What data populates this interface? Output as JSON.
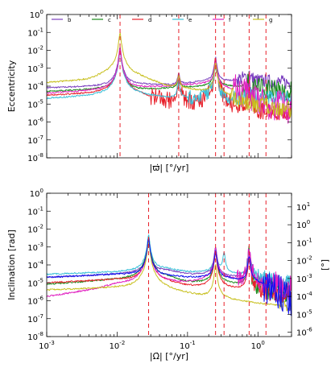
{
  "chart_data": [
    {
      "type": "line",
      "panel": "top",
      "ylabel": "Eccentricity",
      "xlabel": "|ϖ̇|  [°/yr]",
      "x_scale": "log",
      "y_scale": "log",
      "xlim": [
        0.001,
        3
      ],
      "ylim": [
        1e-08,
        1
      ],
      "x_ticks": [
        0.001,
        0.01,
        0.1,
        1
      ],
      "x_tick_labels_visible": false,
      "y_ticks": [
        {
          "value": 1,
          "label": "10",
          "exp": "0"
        },
        {
          "value": 0.1,
          "label": "10",
          "exp": "-1"
        },
        {
          "value": 0.01,
          "label": "10",
          "exp": "-2"
        },
        {
          "value": 0.001,
          "label": "10",
          "exp": "-3"
        },
        {
          "value": 0.0001,
          "label": "10",
          "exp": "-4"
        },
        {
          "value": 1e-05,
          "label": "10",
          "exp": "-5"
        },
        {
          "value": 1e-06,
          "label": "10",
          "exp": "-6"
        },
        {
          "value": 1e-07,
          "label": "10",
          "exp": "-7"
        },
        {
          "value": 1e-08,
          "label": "10",
          "exp": "-8"
        }
      ],
      "legend": {
        "placement": "top",
        "entries": [
          {
            "name": "b",
            "color": "#7b3fbf"
          },
          {
            "name": "c",
            "color": "#1a8a1a"
          },
          {
            "name": "d",
            "color": "#e8202a"
          },
          {
            "name": "e",
            "color": "#3cc0d8"
          },
          {
            "name": "f",
            "color": "#e020c0"
          },
          {
            "name": "g",
            "color": "#c8c020"
          }
        ]
      },
      "vlines": [
        0.011,
        0.075,
        0.25,
        0.33,
        0.75,
        1.3
      ],
      "series": [
        {
          "name": "b",
          "color": "#7b3fbf",
          "baseline": [
            [
              0.001,
              8e-05
            ],
            [
              0.008,
              0.0001
            ],
            [
              0.02,
              0.00012
            ],
            [
              0.06,
              0.00012
            ],
            [
              0.1,
              0.00015
            ],
            [
              0.2,
              0.0002
            ],
            [
              0.4,
              0.0002
            ],
            [
              0.7,
              0.0003
            ],
            [
              1,
              0.0002
            ],
            [
              3,
              0.00015
            ]
          ],
          "peaks": [
            [
              0.011,
              0.015
            ],
            [
              0.075,
              0.0004
            ],
            [
              0.25,
              0.004
            ],
            [
              0.75,
              0.0003
            ]
          ],
          "noise_from": 0.5,
          "noise_amp": 0.4
        },
        {
          "name": "c",
          "color": "#1a8a1a",
          "baseline": [
            [
              0.001,
              5e-05
            ],
            [
              0.008,
              7e-05
            ],
            [
              0.02,
              6e-05
            ],
            [
              0.06,
              8e-05
            ],
            [
              0.2,
              0.0001
            ],
            [
              0.4,
              0.0001
            ],
            [
              1,
              8e-05
            ],
            [
              3,
              5e-05
            ]
          ],
          "peaks": [
            [
              0.011,
              0.01
            ],
            [
              0.075,
              0.0003
            ],
            [
              0.25,
              0.003
            ],
            [
              0.75,
              0.0002
            ]
          ],
          "noise_from": 0.6,
          "noise_amp": 0.6
        },
        {
          "name": "d",
          "color": "#e8202a",
          "baseline": [
            [
              0.001,
              3e-05
            ],
            [
              0.008,
              4e-05
            ],
            [
              0.02,
              3e-05
            ],
            [
              0.05,
              1e-05
            ],
            [
              0.1,
              1e-05
            ],
            [
              0.2,
              1e-05
            ],
            [
              0.4,
              5e-06
            ],
            [
              1,
              3e-06
            ],
            [
              3,
              2e-06
            ]
          ],
          "peaks": [
            [
              0.011,
              0.012
            ],
            [
              0.075,
              0.0003
            ],
            [
              0.25,
              0.002
            ],
            [
              0.75,
              0.0001
            ]
          ],
          "noise_from": 0.03,
          "noise_amp": 0.5
        },
        {
          "name": "e",
          "color": "#3cc0d8",
          "baseline": [
            [
              0.001,
              2e-05
            ],
            [
              0.008,
              3e-05
            ],
            [
              0.02,
              3e-05
            ],
            [
              0.06,
              2e-05
            ],
            [
              0.15,
              2e-05
            ],
            [
              0.4,
              1.5e-05
            ],
            [
              1,
              3e-05
            ],
            [
              3,
              2e-05
            ]
          ],
          "peaks": [
            [
              0.011,
              0.01
            ],
            [
              0.075,
              0.0002
            ],
            [
              0.25,
              0.002
            ],
            [
              0.75,
              0.0001
            ]
          ],
          "noise_from": 0.1,
          "noise_amp": 0.4
        },
        {
          "name": "f",
          "color": "#e020c0",
          "baseline": [
            [
              0.001,
              4e-05
            ],
            [
              0.008,
              6e-05
            ],
            [
              0.02,
              8e-05
            ],
            [
              0.06,
              0.0001
            ],
            [
              0.2,
              0.00015
            ],
            [
              0.5,
              5e-05
            ],
            [
              1,
              1e-05
            ],
            [
              3,
              5e-06
            ]
          ],
          "peaks": [
            [
              0.011,
              0.012
            ],
            [
              0.075,
              0.0003
            ],
            [
              0.25,
              0.003
            ],
            [
              0.75,
              0.0001
            ]
          ],
          "noise_from": 0.45,
          "noise_amp": 0.9
        },
        {
          "name": "g",
          "color": "#c8c020",
          "baseline": [
            [
              0.001,
              0.00015
            ],
            [
              0.004,
              0.0002
            ],
            [
              0.008,
              0.0005
            ],
            [
              0.02,
              0.0003
            ],
            [
              0.05,
              8e-05
            ],
            [
              0.1,
              6e-05
            ],
            [
              0.3,
              3e-05
            ],
            [
              1,
              5e-06
            ],
            [
              3,
              2e-06
            ]
          ],
          "peaks": [
            [
              0.011,
              0.1
            ],
            [
              0.075,
              0.0004
            ],
            [
              0.25,
              0.002
            ]
          ],
          "noise_from": 0.4,
          "noise_amp": 0.5
        }
      ]
    },
    {
      "type": "line",
      "panel": "bottom",
      "ylabel": "Inclination [rad]",
      "y2label": "[°]",
      "xlabel": "|Ω̇|  [°/yr]",
      "x_scale": "log",
      "y_scale": "log",
      "xlim": [
        0.001,
        3
      ],
      "ylim": [
        1e-08,
        1
      ],
      "x_ticks": [
        {
          "value": 0.001,
          "label": "10",
          "exp": "-3"
        },
        {
          "value": 0.01,
          "label": "10",
          "exp": "-2"
        },
        {
          "value": 0.1,
          "label": "10",
          "exp": "-1"
        },
        {
          "value": 1,
          "label": "10",
          "exp": "0"
        }
      ],
      "y_ticks": [
        {
          "value": 1,
          "label": "10",
          "exp": "0"
        },
        {
          "value": 0.1,
          "label": "10",
          "exp": "-1"
        },
        {
          "value": 0.01,
          "label": "10",
          "exp": "-2"
        },
        {
          "value": 0.001,
          "label": "10",
          "exp": "-3"
        },
        {
          "value": 0.0001,
          "label": "10",
          "exp": "-4"
        },
        {
          "value": 1e-05,
          "label": "10",
          "exp": "-5"
        },
        {
          "value": 1e-06,
          "label": "10",
          "exp": "-6"
        },
        {
          "value": 1e-07,
          "label": "10",
          "exp": "-7"
        },
        {
          "value": 1e-08,
          "label": "10",
          "exp": "-8"
        }
      ],
      "y2_ticks": [
        {
          "value": 10,
          "label": "10",
          "exp": "1"
        },
        {
          "value": 1,
          "label": "10",
          "exp": "0"
        },
        {
          "value": 0.1,
          "label": "10",
          "exp": "-1"
        },
        {
          "value": 0.01,
          "label": "10",
          "exp": "-2"
        },
        {
          "value": 0.001,
          "label": "10",
          "exp": "-3"
        },
        {
          "value": 0.0001,
          "label": "10",
          "exp": "-4"
        },
        {
          "value": 1e-05,
          "label": "10",
          "exp": "-5"
        },
        {
          "value": 1e-06,
          "label": "10",
          "exp": "-6"
        }
      ],
      "vlines": [
        0.028,
        0.25,
        0.33,
        0.75,
        1.3
      ],
      "series": [
        {
          "name": "b",
          "color": "#7b3fbf",
          "baseline": [
            [
              0.001,
              2e-05
            ],
            [
              0.01,
              3e-05
            ],
            [
              0.05,
              5e-05
            ],
            [
              0.1,
              3e-05
            ],
            [
              0.2,
              3e-05
            ],
            [
              0.5,
              2e-05
            ],
            [
              1,
              1e-05
            ],
            [
              3,
              5e-06
            ]
          ],
          "peaks": [
            [
              0.028,
              0.003
            ],
            [
              0.25,
              0.001
            ],
            [
              0.75,
              0.0005
            ]
          ],
          "noise_from": 0.7,
          "noise_amp": 0.4
        },
        {
          "name": "c",
          "color": "#1a8a1a",
          "baseline": [
            [
              0.001,
              8e-06
            ],
            [
              0.01,
              1.5e-05
            ],
            [
              0.05,
              2e-05
            ],
            [
              0.1,
              1e-05
            ],
            [
              0.3,
              1e-05
            ],
            [
              1,
              5e-06
            ],
            [
              3,
              2e-06
            ]
          ],
          "peaks": [
            [
              0.028,
              0.004
            ],
            [
              0.25,
              0.0006
            ],
            [
              0.75,
              0.0003
            ]
          ],
          "noise_from": 0.7,
          "noise_amp": 0.6
        },
        {
          "name": "d",
          "color": "#e8202a",
          "baseline": [
            [
              0.001,
              1e-05
            ],
            [
              0.01,
              1.5e-05
            ],
            [
              0.05,
              1e-05
            ],
            [
              0.1,
              6e-06
            ],
            [
              0.3,
              5e-06
            ],
            [
              1,
              3e-06
            ],
            [
              3,
              2e-06
            ]
          ],
          "peaks": [
            [
              0.028,
              0.003
            ],
            [
              0.25,
              0.0005
            ],
            [
              0.75,
              0.0002
            ]
          ],
          "noise_from": 0.8,
          "noise_amp": 0.5
        },
        {
          "name": "e",
          "color": "#3cc0d8",
          "baseline": [
            [
              0.001,
              3e-05
            ],
            [
              0.01,
              4e-05
            ],
            [
              0.05,
              6e-05
            ],
            [
              0.1,
              4e-05
            ],
            [
              0.3,
              4e-05
            ],
            [
              1,
              2e-05
            ],
            [
              3,
              1e-05
            ]
          ],
          "peaks": [
            [
              0.028,
              0.005
            ],
            [
              0.25,
              0.001
            ],
            [
              0.33,
              0.0005
            ],
            [
              0.75,
              0.0005
            ]
          ],
          "noise_from": 0.8,
          "noise_amp": 0.4
        },
        {
          "name": "f",
          "color": "#e020c0",
          "baseline": [
            [
              0.001,
              1.5e-06
            ],
            [
              0.005,
              4e-06
            ],
            [
              0.01,
              8e-06
            ],
            [
              0.05,
              1e-05
            ],
            [
              0.1,
              1e-05
            ],
            [
              0.3,
              2e-05
            ],
            [
              1,
              1e-05
            ],
            [
              3,
              6e-06
            ]
          ],
          "peaks": [
            [
              0.028,
              0.003
            ],
            [
              0.25,
              0.001
            ],
            [
              0.75,
              0.0004
            ]
          ],
          "noise_from": 0.5,
          "noise_amp": 0.7
        },
        {
          "name": "g",
          "color": "#c8c020",
          "baseline": [
            [
              0.001,
              4e-06
            ],
            [
              0.01,
              5e-06
            ],
            [
              0.05,
              3e-06
            ],
            [
              0.1,
              2e-06
            ],
            [
              0.3,
              1e-06
            ],
            [
              1,
              6e-07
            ],
            [
              3,
              4e-07
            ]
          ],
          "peaks": [
            [
              0.028,
              0.002
            ],
            [
              0.25,
              0.0001
            ]
          ],
          "noise_from": 2,
          "noise_amp": 0.3
        },
        {
          "name": "blue",
          "color": "#1010ee",
          "baseline": [
            [
              0.001,
              2e-05
            ],
            [
              0.01,
              3e-05
            ],
            [
              0.1,
              2e-05
            ],
            [
              0.3,
              2e-05
            ],
            [
              1,
              1e-05
            ],
            [
              2,
              3e-06
            ],
            [
              3,
              8e-07
            ]
          ],
          "peaks": [
            [
              0.028,
              0.003
            ],
            [
              0.25,
              0.0006
            ],
            [
              0.75,
              0.0003
            ]
          ],
          "noise_from": 1.2,
          "noise_amp": 1.0
        }
      ]
    }
  ]
}
